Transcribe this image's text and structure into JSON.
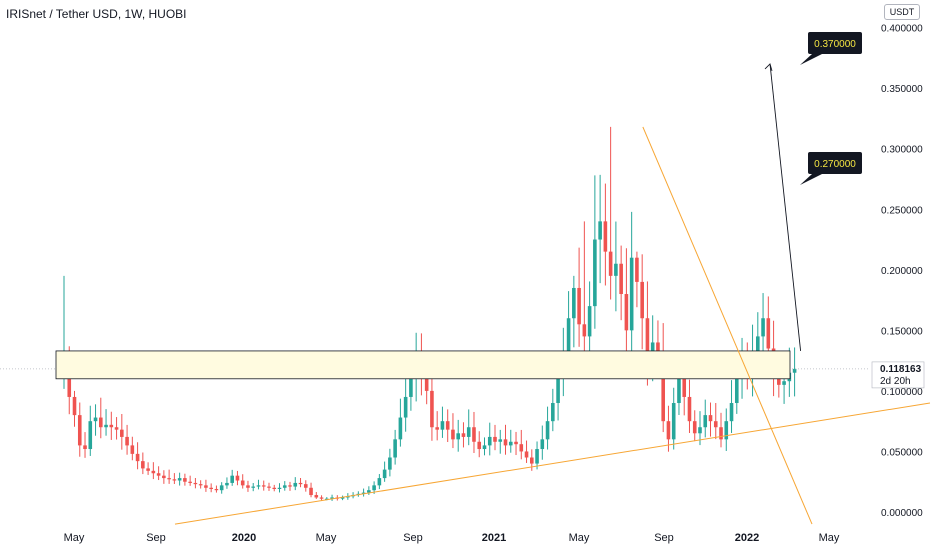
{
  "header": {
    "title": "IRISnet / Tether USD, 1W, HUOBI",
    "unit": "USDT"
  },
  "price_scale": {
    "ticks": [
      "0.000000",
      "0.050000",
      "0.100000",
      "0.150000",
      "0.200000",
      "0.250000",
      "0.300000",
      "0.350000",
      "0.400000"
    ],
    "tick_values": [
      0,
      0.05,
      0.1,
      0.15,
      0.2,
      0.25,
      0.3,
      0.35,
      0.4
    ],
    "current_price": "0.118163",
    "countdown": "2d 20h"
  },
  "time_scale": {
    "ticks": [
      {
        "label": "May",
        "bold": false
      },
      {
        "label": "Sep",
        "bold": false
      },
      {
        "label": "2020",
        "bold": true
      },
      {
        "label": "May",
        "bold": false
      },
      {
        "label": "Sep",
        "bold": false
      },
      {
        "label": "2021",
        "bold": true
      },
      {
        "label": "May",
        "bold": false
      },
      {
        "label": "Sep",
        "bold": false
      },
      {
        "label": "2022",
        "bold": true
      },
      {
        "label": "May",
        "bold": false
      }
    ]
  },
  "annotations": {
    "targets": [
      "0.370000",
      "0.270000"
    ]
  },
  "colors": {
    "up": "#26a69a",
    "down": "#ef5350",
    "trendline": "#f7a634",
    "zone_fill": "#fffbe0",
    "callout_bg": "#131722",
    "callout_text": "#f5e642"
  },
  "chart_data": {
    "type": "candlestick",
    "interval": "1W",
    "ylim": [
      0,
      0.4
    ],
    "start": "2019-04-22",
    "end": "2021-10-18",
    "range_high": 0.195,
    "range_low": 0.01,
    "peak_high": 0.318,
    "zone": [
      0.11,
      0.133
    ],
    "target_prices": [
      0.37,
      0.27
    ],
    "arrow": {
      "from_date": "2021-10-18",
      "from_price": 0.133,
      "to_date": "2022-02-07",
      "to_price": 0.37
    }
  }
}
